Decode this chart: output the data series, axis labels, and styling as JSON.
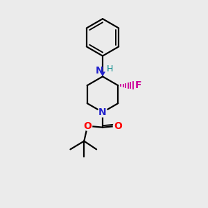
{
  "background_color": "#ebebeb",
  "figsize": [
    3.0,
    3.0
  ],
  "dpi": 100,
  "colors": {
    "bond": "#000000",
    "N": "#2222cc",
    "O": "#ff0000",
    "F": "#cc0099",
    "H": "#008888"
  },
  "lw": 1.6
}
